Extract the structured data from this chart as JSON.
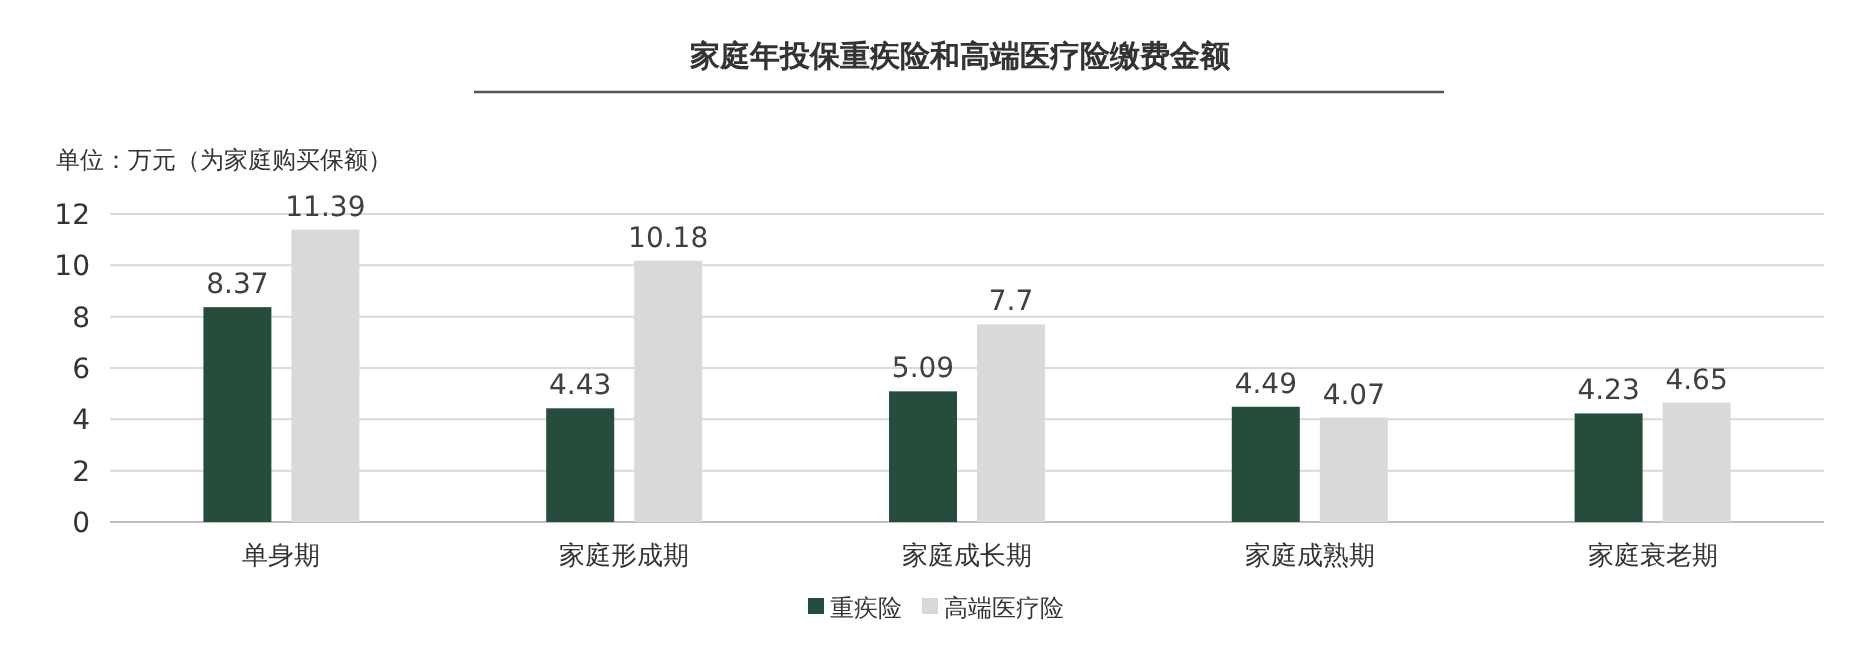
{
  "chart_data": {
    "type": "bar",
    "title": "家庭年投保重疾险和高端医疗险缴费金额",
    "ylabel": "单位：万元（为家庭购买保额）",
    "categories": [
      "单身期",
      "家庭形成期",
      "家庭成长期",
      "家庭成熟期",
      "家庭衰老期"
    ],
    "series": [
      {
        "name": "重疾险",
        "color": "#264d3b",
        "values": [
          8.37,
          4.43,
          5.09,
          4.49,
          4.23
        ]
      },
      {
        "name": "高端医疗险",
        "color": "#d9d9d9",
        "values": [
          11.39,
          10.18,
          7.7,
          4.07,
          4.65
        ]
      }
    ],
    "ylim": [
      0,
      12
    ],
    "yticks": [
      0,
      2,
      4,
      6,
      8,
      10,
      12
    ],
    "grid": "y",
    "legend": "bottom",
    "data_labels": true
  }
}
